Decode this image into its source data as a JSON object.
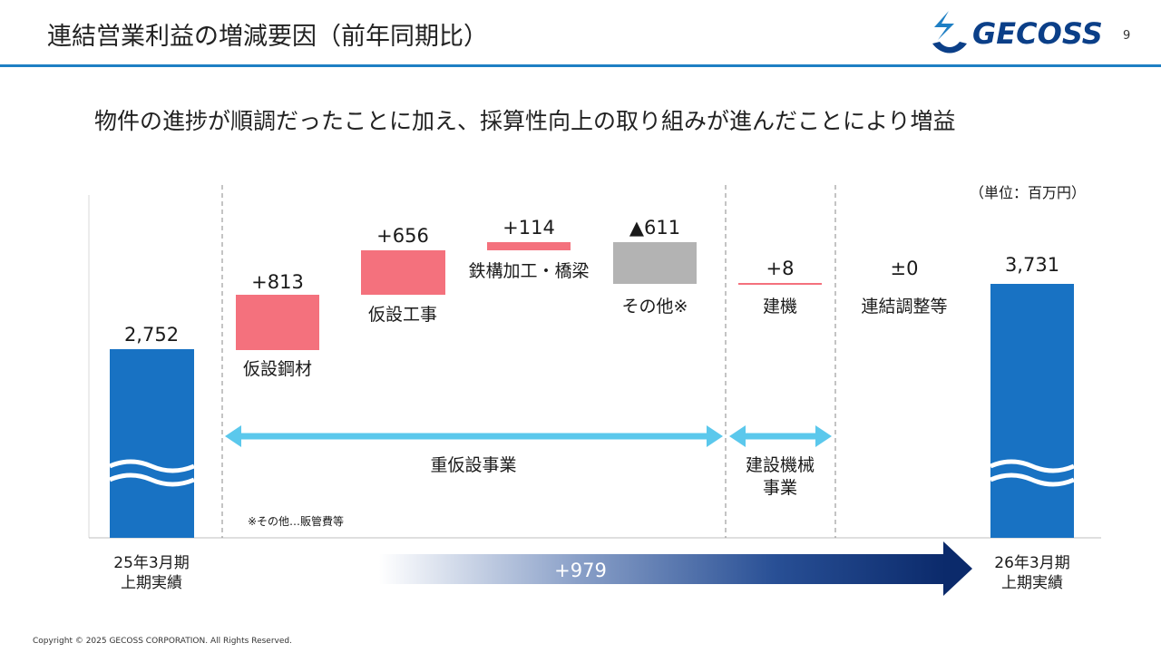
{
  "header": {
    "title": "連結営業利益の増減要因（前年同期比）",
    "logo_text": "GECOSS",
    "page_number": "9"
  },
  "subtitle": "物件の進捗が順調だったことに加え、採算性向上の取り組みが進んだことにより増益",
  "unit_label": "（単位：百万円）",
  "footnote": "※その他…販管費等",
  "copyright": "Copyright © 2025 GECOSS CORPORATION. All Rights Reserved.",
  "colors": {
    "blue_bar": "#1872c3",
    "pink_bar": "#f4717d",
    "gray_bar": "#b3b3b3",
    "arrow": "#5bc8ec",
    "total_arrow_dark": "#0b2a6b",
    "header_line": "#1e7fc4"
  },
  "chart_data": {
    "type": "waterfall",
    "unit": "百万円",
    "start": {
      "label_line1": "25年3月期",
      "label_line2": "上期実績",
      "value": 2752,
      "value_label": "2,752"
    },
    "end": {
      "label_line1": "26年3月期",
      "label_line2": "上期実績",
      "value": 3731,
      "value_label": "3,731"
    },
    "steps": [
      {
        "name": "仮設鋼材",
        "delta": 813,
        "value_label": "+813",
        "color": "pink"
      },
      {
        "name": "仮設工事",
        "delta": 656,
        "value_label": "+656",
        "color": "pink"
      },
      {
        "name": "鉄構加工・橋梁",
        "delta": 114,
        "value_label": "+114",
        "color": "pink"
      },
      {
        "name": "その他※",
        "delta": -611,
        "value_label": "▲611",
        "color": "gray"
      },
      {
        "name": "建機",
        "delta": 8,
        "value_label": "+8",
        "color": "pink"
      },
      {
        "name": "連結調整等",
        "delta": 0,
        "value_label": "±0",
        "color": "none"
      }
    ],
    "segments": [
      {
        "name": "重仮設事業"
      },
      {
        "name_line1": "建設機械",
        "name_line2": "事業"
      }
    ],
    "total_change": {
      "value": 979,
      "label": "+979"
    }
  }
}
